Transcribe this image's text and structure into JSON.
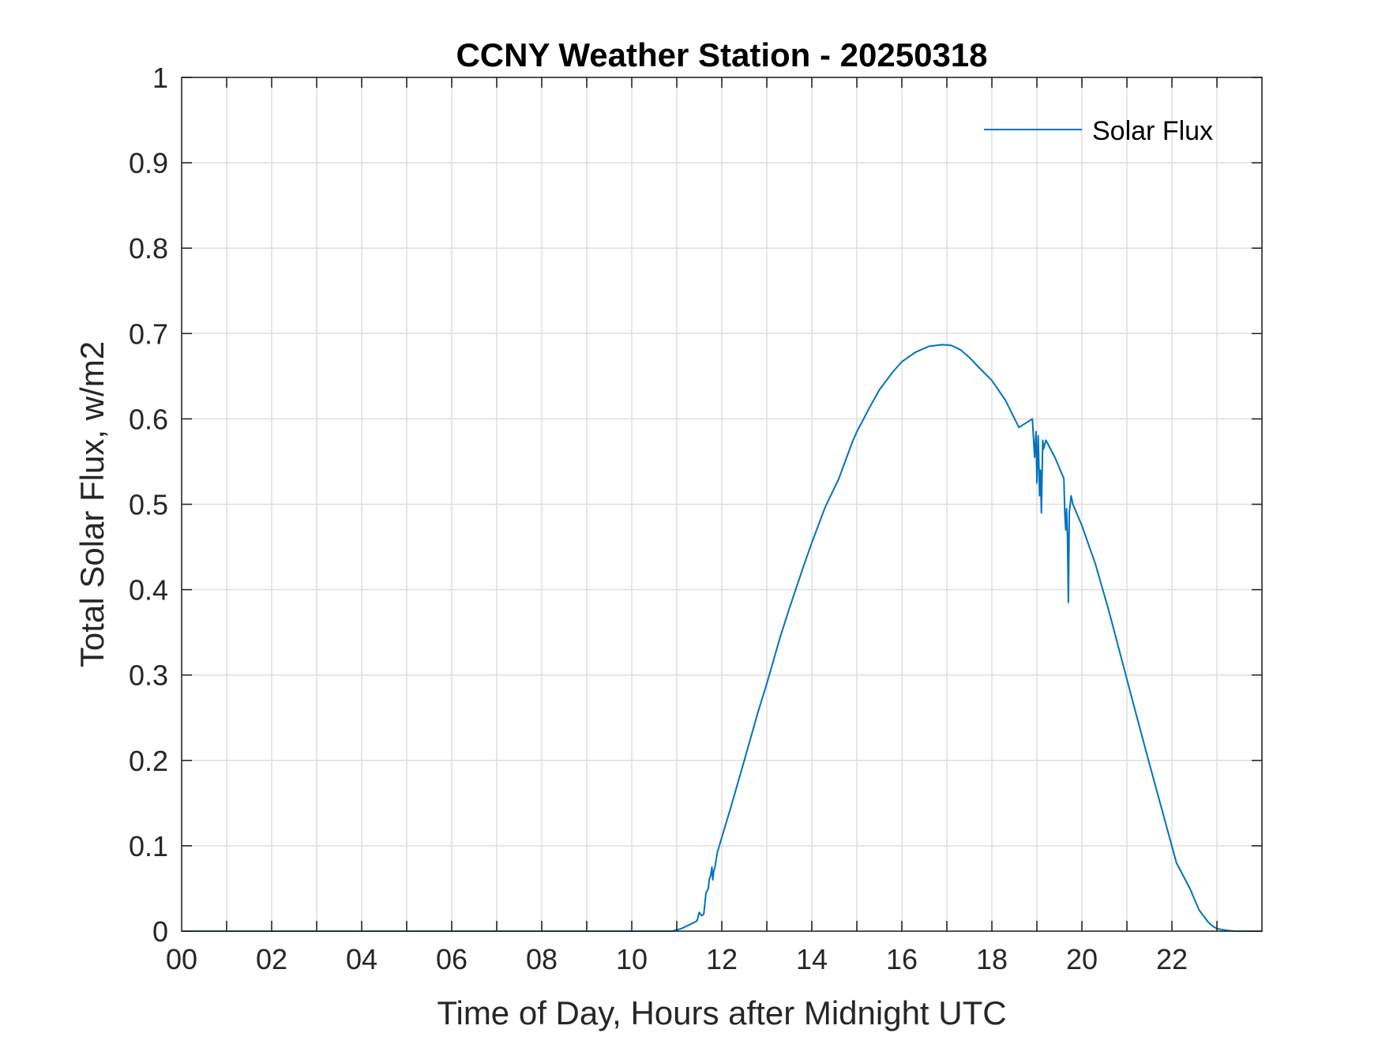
{
  "chart_data": {
    "type": "line",
    "title": "CCNY Weather Station - 20250318",
    "xlabel": "Time of Day, Hours after Midnight UTC",
    "ylabel": "Total Solar Flux, w/m2",
    "xlim": [
      0,
      24
    ],
    "ylim": [
      0,
      1
    ],
    "x_ticks": [
      0,
      2,
      4,
      6,
      8,
      10,
      12,
      14,
      16,
      18,
      20,
      22
    ],
    "x_tick_labels": [
      "00",
      "02",
      "04",
      "06",
      "08",
      "10",
      "12",
      "14",
      "16",
      "18",
      "20",
      "22"
    ],
    "y_ticks": [
      0,
      0.1,
      0.2,
      0.3,
      0.4,
      0.5,
      0.6,
      0.7,
      0.8,
      0.9,
      1
    ],
    "y_tick_labels": [
      "0",
      "0.1",
      "0.2",
      "0.3",
      "0.4",
      "0.5",
      "0.6",
      "0.7",
      "0.8",
      "0.9",
      "1"
    ],
    "grid": true,
    "legend_position": "top-right",
    "colors": {
      "series": "#0072BD",
      "grid": "#dedede",
      "axes": "#262626"
    },
    "series": [
      {
        "name": "Solar Flux",
        "x": [
          0,
          10.9,
          11.1,
          11.3,
          11.45,
          11.5,
          11.55,
          11.6,
          11.65,
          11.7,
          11.72,
          11.75,
          11.78,
          11.8,
          11.82,
          11.85,
          11.9,
          12.0,
          12.2,
          12.5,
          12.8,
          13.0,
          13.3,
          13.5,
          13.8,
          14.0,
          14.3,
          14.6,
          14.9,
          15.0,
          15.3,
          15.5,
          15.8,
          16.0,
          16.3,
          16.6,
          16.9,
          17.1,
          17.3,
          17.5,
          17.7,
          18.0,
          18.3,
          18.6,
          18.9,
          18.95,
          18.98,
          19.0,
          19.03,
          19.06,
          19.08,
          19.1,
          19.13,
          19.15,
          19.2,
          19.4,
          19.6,
          19.62,
          19.64,
          19.66,
          19.68,
          19.7,
          19.72,
          19.74,
          19.76,
          19.8,
          20.0,
          20.3,
          20.6,
          20.9,
          21.2,
          21.5,
          21.8,
          22.1,
          22.4,
          22.6,
          22.8,
          22.9,
          23.0,
          23.1,
          23.2,
          23.4,
          23.6,
          24
        ],
        "y": [
          0,
          0,
          0.003,
          0.008,
          0.012,
          0.022,
          0.018,
          0.02,
          0.045,
          0.05,
          0.06,
          0.065,
          0.075,
          0.06,
          0.07,
          0.075,
          0.092,
          0.11,
          0.145,
          0.2,
          0.256,
          0.29,
          0.345,
          0.378,
          0.425,
          0.455,
          0.497,
          0.53,
          0.573,
          0.585,
          0.615,
          0.634,
          0.655,
          0.667,
          0.678,
          0.685,
          0.687,
          0.686,
          0.681,
          0.672,
          0.661,
          0.645,
          0.622,
          0.59,
          0.6,
          0.555,
          0.585,
          0.525,
          0.58,
          0.51,
          0.54,
          0.49,
          0.575,
          0.565,
          0.575,
          0.555,
          0.53,
          0.49,
          0.47,
          0.495,
          0.46,
          0.385,
          0.49,
          0.5,
          0.51,
          0.5,
          0.475,
          0.43,
          0.375,
          0.315,
          0.255,
          0.196,
          0.138,
          0.08,
          0.05,
          0.025,
          0.011,
          0.006,
          0.003,
          0.002,
          0.001,
          0,
          0,
          0
        ]
      }
    ]
  }
}
